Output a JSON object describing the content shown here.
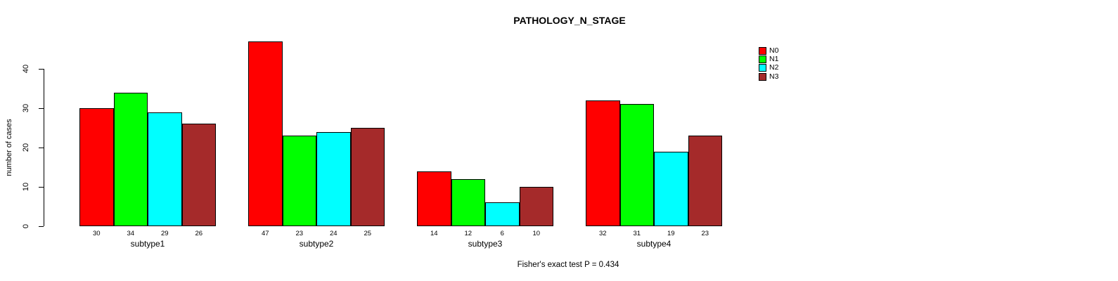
{
  "title": "PATHOLOGY_N_STAGE",
  "footer": "Fisher's exact test P = 0.434",
  "chart_data": {
    "type": "bar",
    "title": "PATHOLOGY_N_STAGE",
    "categories": [
      "subtype1",
      "subtype2",
      "subtype3",
      "subtype4"
    ],
    "series": [
      {
        "name": "N0",
        "color": "#FF0000",
        "values": [
          30,
          47,
          14,
          32
        ]
      },
      {
        "name": "N1",
        "color": "#00FF00",
        "values": [
          34,
          23,
          12,
          31
        ]
      },
      {
        "name": "N2",
        "color": "#00FFFF",
        "values": [
          29,
          24,
          6,
          19
        ]
      },
      {
        "name": "N3",
        "color": "#A52A2A",
        "values": [
          26,
          25,
          10,
          23
        ]
      }
    ],
    "ylabel": "number of cases",
    "xlabel": "",
    "yticks": [
      0,
      10,
      20,
      30,
      40
    ],
    "ylim": [
      0,
      47
    ],
    "grid": false,
    "legend_position": "top-right",
    "bar_value_labels_shown": true,
    "annotation": "Fisher's exact test P = 0.434",
    "axis_color": "#000000",
    "background_color": "#FFFFFF"
  }
}
